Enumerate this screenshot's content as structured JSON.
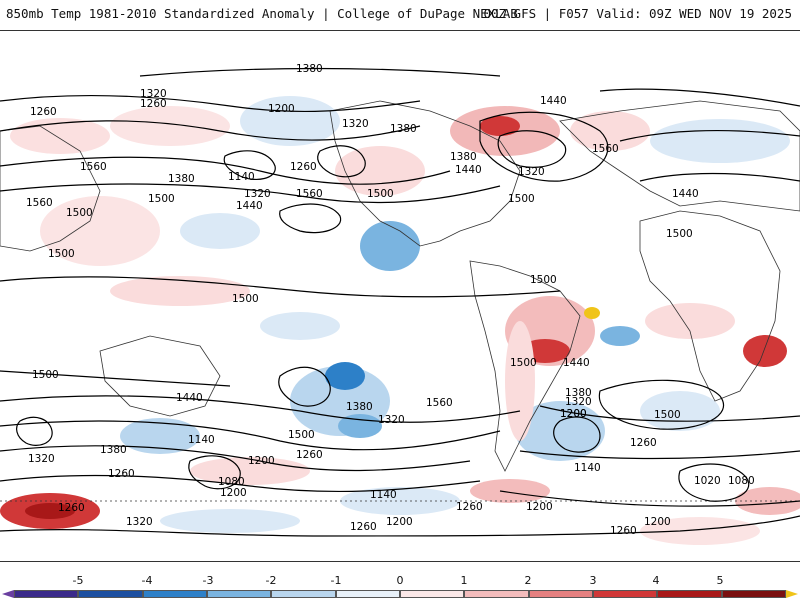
{
  "header": {
    "left_title": "850mb Temp 1981-2010 Standardized Anomaly | College of DuPage NEXLAB",
    "right_title": "00Z GFS | F057 Valid: 09Z WED NOV 19 2025"
  },
  "map": {
    "projection": "cylindrical world map",
    "contour_labels": [
      {
        "text": "1380"
      },
      {
        "text": "1320"
      },
      {
        "text": "1260"
      },
      {
        "text": "1260"
      },
      {
        "text": "1200"
      },
      {
        "text": "1320"
      },
      {
        "text": "1440"
      },
      {
        "text": "1380"
      },
      {
        "text": "1560"
      },
      {
        "text": "1380"
      },
      {
        "text": "1440"
      },
      {
        "text": "1320"
      },
      {
        "text": "1140"
      },
      {
        "text": "1260"
      },
      {
        "text": "1560"
      },
      {
        "text": "1380"
      },
      {
        "text": "1500"
      },
      {
        "text": "1320"
      },
      {
        "text": "1440"
      },
      {
        "text": "1560"
      },
      {
        "text": "1500"
      },
      {
        "text": "1500"
      },
      {
        "text": "1500"
      },
      {
        "text": "1500"
      },
      {
        "text": "1500"
      },
      {
        "text": "1440"
      },
      {
        "text": "1500"
      },
      {
        "text": "1500"
      },
      {
        "text": "1500"
      },
      {
        "text": "1500"
      },
      {
        "text": "1440"
      },
      {
        "text": "1380"
      },
      {
        "text": "1320"
      },
      {
        "text": "1440"
      },
      {
        "text": "1380"
      },
      {
        "text": "1320"
      },
      {
        "text": "1560"
      },
      {
        "text": "1500"
      },
      {
        "text": "1320"
      },
      {
        "text": "1200"
      },
      {
        "text": "1380"
      },
      {
        "text": "1140"
      },
      {
        "text": "1260"
      },
      {
        "text": "1200"
      },
      {
        "text": "1260"
      },
      {
        "text": "1080"
      },
      {
        "text": "1200"
      },
      {
        "text": "1140"
      },
      {
        "text": "1260"
      },
      {
        "text": "1320"
      },
      {
        "text": "1260"
      },
      {
        "text": "1200"
      },
      {
        "text": "1260"
      },
      {
        "text": "1200"
      },
      {
        "text": "1140"
      },
      {
        "text": "1260"
      },
      {
        "text": "1020"
      },
      {
        "text": "1080"
      },
      {
        "text": "1200"
      },
      {
        "text": "1260"
      },
      {
        "text": "1500"
      },
      {
        "text": "1200"
      },
      {
        "text": "1560"
      }
    ]
  },
  "colorbar": {
    "ticks": [
      "-5",
      "-4",
      "-3",
      "-2",
      "-1",
      "0",
      "1",
      "2",
      "3",
      "4",
      "5"
    ],
    "colors": [
      "#3a2a8a",
      "#1c4fa0",
      "#2d80c8",
      "#7ab4e0",
      "#b9d6ee",
      "#e8f1f9",
      "#fbe8e8",
      "#f3bcbc",
      "#e48080",
      "#d03838",
      "#a81818",
      "#f0c419"
    ],
    "low_tip_color": "#6a3fa0",
    "high_tip_color": "#f0c419"
  }
}
